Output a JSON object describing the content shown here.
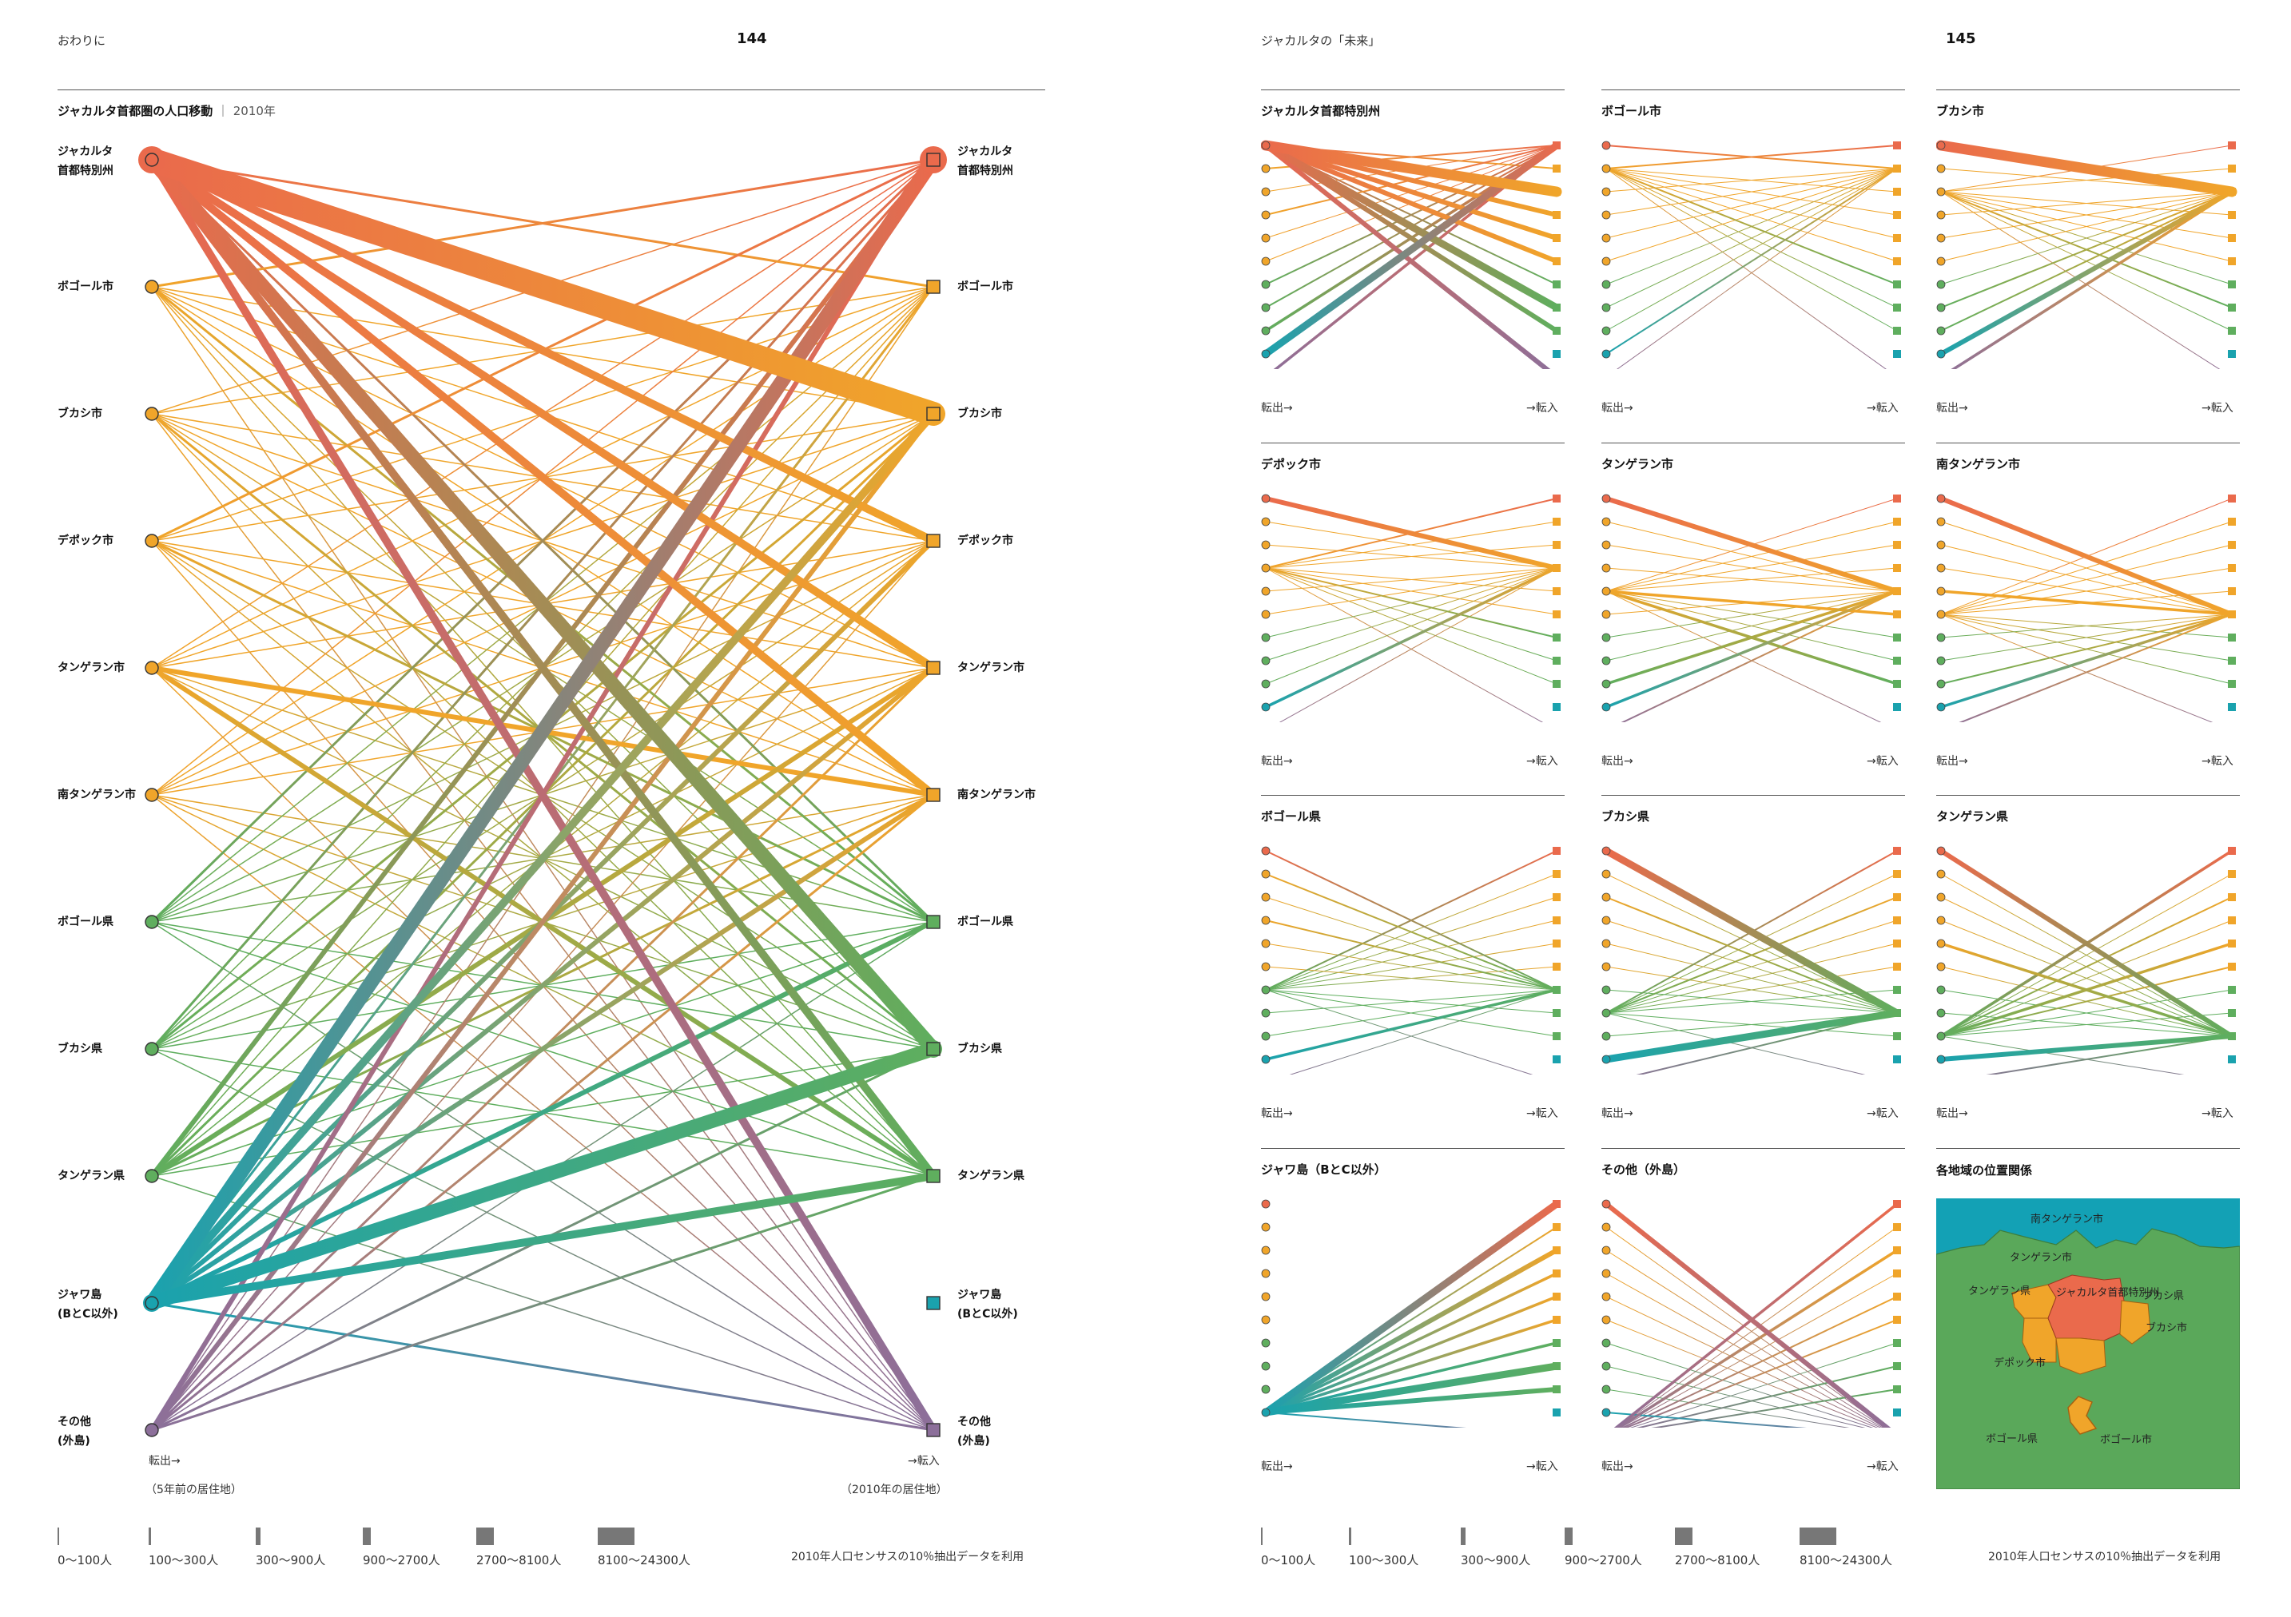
{
  "left_page": {
    "section": "おわりに",
    "page_number": "144",
    "title": "ジャカルタ首都圏の人口移動",
    "title_year": "2010年",
    "axis_left": "転出→",
    "axis_left_note": "（5年前の居住地）",
    "axis_right": "→転入",
    "axis_right_note": "（2010年の居住地）",
    "source": "2010年人口センサスの10％抽出データを利用"
  },
  "right_page": {
    "section": "ジャカルタの「未来」",
    "page_number": "145",
    "small_axis_left": "転出→",
    "small_axis_right": "→転入",
    "panel_titles": [
      "ジャカルタ首都特別州",
      "ボゴール市",
      "ブカシ市",
      "デポック市",
      "タンゲラン市",
      "南タンゲラン市",
      "ボゴール県",
      "ブカシ県",
      "タンゲラン県",
      "ジャワ島（BとC以外）",
      "その他（外島）"
    ],
    "map_title": "各地域の位置関係",
    "map_labels": [
      "南タンゲラン市",
      "タンゲラン市",
      "ジャカルタ首都特別州",
      "タンゲラン県",
      "ブカシ県",
      "ブカシ市",
      "デポック市",
      "ボゴール県",
      "ボゴール市"
    ],
    "source": "2010年人口センサスの10％抽出データを利用"
  },
  "legend": {
    "items": [
      "0～100人",
      "100～300人",
      "300～900人",
      "900～2700人",
      "2700～8100人",
      "8100～24300人"
    ],
    "levels": [
      1,
      2,
      3,
      4,
      5,
      6
    ]
  },
  "colors": {
    "jakarta": "#ea6a4c",
    "city": "#f0a52a",
    "regency": "#5fae5e",
    "java": "#1aa2ae",
    "other": "#8c6f9a",
    "map_sea": "#13a1b5",
    "map_land": "#5aa85a"
  },
  "chart_data": {
    "type": "flow",
    "title": "ジャカルタ首都圏の人口移動",
    "regions": [
      {
        "name": "ジャカルタ 首都特別州",
        "group": "jakarta"
      },
      {
        "name": "ボゴール市",
        "group": "city"
      },
      {
        "name": "ブカシ市",
        "group": "city"
      },
      {
        "name": "デポック市",
        "group": "city"
      },
      {
        "name": "タンゲラン市",
        "group": "city"
      },
      {
        "name": "南タンゲラン市",
        "group": "city"
      },
      {
        "name": "ボゴール県",
        "group": "regency"
      },
      {
        "name": "ブカシ県",
        "group": "regency"
      },
      {
        "name": "タンゲラン県",
        "group": "regency"
      },
      {
        "name": "ジャワ島 (BとC以外)",
        "group": "java"
      },
      {
        "name": "その他 (外島)",
        "group": "other"
      }
    ],
    "outflow_size_level": [
      6,
      2,
      2,
      2,
      2,
      2,
      2,
      2,
      2,
      5,
      2
    ],
    "inflow_size_level": [
      6,
      2,
      5,
      2,
      2,
      2,
      2,
      5,
      2,
      2,
      2
    ],
    "flows_level": [
      [
        0,
        2,
        6,
        4,
        4,
        4,
        2,
        5,
        4,
        0,
        4
      ],
      [
        2,
        0,
        1,
        1,
        1,
        1,
        2,
        1,
        1,
        0,
        1
      ],
      [
        1,
        1,
        0,
        1,
        1,
        1,
        1,
        2,
        1,
        0,
        1
      ],
      [
        2,
        1,
        1,
        0,
        1,
        1,
        2,
        1,
        1,
        0,
        1
      ],
      [
        1,
        1,
        1,
        1,
        0,
        3,
        1,
        1,
        3,
        0,
        1
      ],
      [
        1,
        1,
        1,
        1,
        1,
        0,
        1,
        1,
        1,
        0,
        1
      ],
      [
        2,
        1,
        1,
        1,
        1,
        1,
        0,
        1,
        1,
        0,
        1
      ],
      [
        2,
        1,
        2,
        1,
        1,
        1,
        1,
        0,
        1,
        0,
        1
      ],
      [
        3,
        1,
        2,
        1,
        3,
        2,
        1,
        1,
        0,
        0,
        1
      ],
      [
        5,
        2,
        4,
        3,
        3,
        3,
        3,
        5,
        4,
        0,
        2
      ],
      [
        3,
        1,
        3,
        1,
        2,
        2,
        1,
        2,
        2,
        0,
        0
      ]
    ]
  }
}
